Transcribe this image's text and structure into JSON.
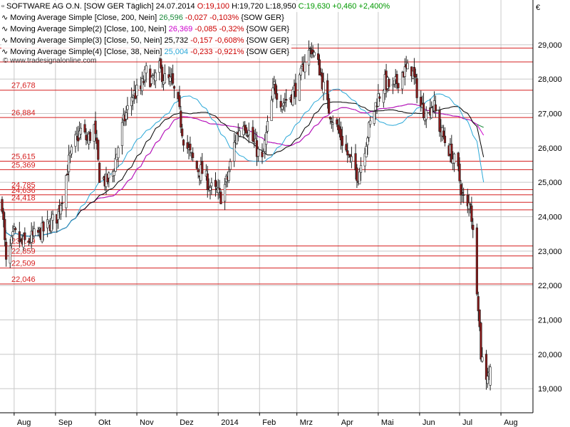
{
  "header": {
    "instrument": "SOFTWARE AG O.N. [SOW GER  Täglich] 24.07.2014",
    "open_label": "O:19,100",
    "high_label": "H:19,720",
    "low_label": "L:18,950",
    "close_label": "C:19,630",
    "change": "+0,460",
    "change_pct": "+2,400%"
  },
  "legend": [
    {
      "label": "Moving Average Simple [Close, 200, Nein]",
      "value": "26,596",
      "change": "-0,027",
      "pct": "-0,103%",
      "suffix": "{SOW GER}",
      "color": "#1a8a3a"
    },
    {
      "label": "Moving Average Simple(2) [Close, 100, Nein]",
      "value": "26,369",
      "change": "-0,085",
      "pct": "-0,32%",
      "suffix": "{SOW GER}",
      "color": "#cc00cc"
    },
    {
      "label": "Moving Average Simple(3) [Close, 50, Nein]",
      "value": "25,732",
      "change": "-0,157",
      "pct": "-0,608%",
      "suffix": "{SOW GER}",
      "color": "#000000"
    },
    {
      "label": "Moving Average Simple(4) [Close, 38, Nein]",
      "value": "25,004",
      "change": "-0,233",
      "pct": "-0,921%",
      "suffix": "{SOW GER}",
      "color": "#2aa8d8"
    }
  ],
  "watermark": "© www.tradesignalonline.com",
  "currency_symbol": "€",
  "colors": {
    "up": "#ffffff",
    "down": "#8b1a1a",
    "hline": "#d62020",
    "grid": "#c8c8c8",
    "ma200": "#1a8a3a",
    "ma100": "#cc00cc",
    "ma50": "#000000",
    "ma38": "#2aa8d8"
  },
  "chart_data": {
    "type": "candlestick",
    "title": "SOFTWARE AG O.N. [SOW GER  Täglich] 24.07.2014",
    "ylim": [
      18.3,
      30.3
    ],
    "yticks": [
      19,
      20,
      21,
      22,
      23,
      24,
      25,
      26,
      27,
      28,
      29
    ],
    "ytick_labels": [
      "19,000",
      "20,000",
      "21,000",
      "22,000",
      "23,000",
      "24,000",
      "25,000",
      "26,000",
      "27,000",
      "28,000",
      "29,000"
    ],
    "xtick_labels": [
      "Aug",
      "Sep",
      "Okt",
      "Nov",
      "Dez",
      "2014",
      "Feb",
      "Mrz",
      "Apr",
      "Mai",
      "Jun",
      "Jul",
      "Aug"
    ],
    "horizontal_levels": [
      {
        "label": "27,678",
        "value": 27.678
      },
      {
        "label": "26,884",
        "value": 26.884
      },
      {
        "label": "25,615",
        "value": 25.615
      },
      {
        "label": "25,369",
        "value": 25.369
      },
      {
        "label": "24,785",
        "value": 24.785
      },
      {
        "label": "24,636",
        "value": 24.636
      },
      {
        "label": "24,418",
        "value": 24.418
      },
      {
        "label": "23,149",
        "value": 23.149
      },
      {
        "label": "22,859",
        "value": 22.859
      },
      {
        "label": "22,509",
        "value": 22.509
      },
      {
        "label": "22,046",
        "value": 22.046
      },
      {
        "label": "",
        "value": 28.9
      },
      {
        "label": "",
        "value": 28.5
      },
      {
        "label": "",
        "value": 24.2
      }
    ],
    "month_starts": [
      {
        "label": "Aug",
        "start": "2013-08-01"
      },
      {
        "label": "Sep",
        "start": "2013-09-01"
      },
      {
        "label": "Okt",
        "start": "2013-10-01"
      },
      {
        "label": "Nov",
        "start": "2013-11-01"
      },
      {
        "label": "Dez",
        "start": "2013-12-01"
      },
      {
        "label": "2014",
        "start": "2014-01-01"
      },
      {
        "label": "Feb",
        "start": "2014-02-01"
      },
      {
        "label": "Mrz",
        "start": "2014-03-01"
      },
      {
        "label": "Apr",
        "start": "2014-04-01"
      },
      {
        "label": "Mai",
        "start": "2014-05-01"
      },
      {
        "label": "Jun",
        "start": "2014-06-01"
      },
      {
        "label": "Jul",
        "start": "2014-07-01"
      },
      {
        "label": "Aug",
        "start": "2014-08-01"
      }
    ],
    "close_path": [
      [
        "2013-07-23",
        24.4
      ],
      [
        "2013-07-26",
        22.6
      ],
      [
        "2013-08-01",
        23.5
      ],
      [
        "2013-08-07",
        23.2
      ],
      [
        "2013-08-15",
        23.4
      ],
      [
        "2013-08-23",
        23.6
      ],
      [
        "2013-09-02",
        24.0
      ],
      [
        "2013-09-06",
        24.6
      ],
      [
        "2013-09-11",
        25.6
      ],
      [
        "2013-09-16",
        26.2
      ],
      [
        "2013-09-20",
        26.5
      ],
      [
        "2013-09-25",
        26.2
      ],
      [
        "2013-09-30",
        26.6
      ],
      [
        "2013-10-04",
        25.2
      ],
      [
        "2013-10-09",
        25.0
      ],
      [
        "2013-10-14",
        25.3
      ],
      [
        "2013-10-21",
        26.6
      ],
      [
        "2013-10-28",
        27.5
      ],
      [
        "2013-11-04",
        27.7
      ],
      [
        "2013-11-08",
        28.2
      ],
      [
        "2013-11-13",
        27.9
      ],
      [
        "2013-11-18",
        28.3
      ],
      [
        "2013-11-22",
        28.0
      ],
      [
        "2013-11-27",
        27.9
      ],
      [
        "2013-12-02",
        27.2
      ],
      [
        "2013-12-06",
        26.3
      ],
      [
        "2013-12-11",
        25.8
      ],
      [
        "2013-12-16",
        25.4
      ],
      [
        "2013-12-20",
        25.3
      ],
      [
        "2013-12-27",
        24.8
      ],
      [
        "2014-01-03",
        24.6
      ],
      [
        "2014-01-08",
        25.1
      ],
      [
        "2014-01-14",
        26.3
      ],
      [
        "2014-01-20",
        26.8
      ],
      [
        "2014-01-27",
        26.2
      ],
      [
        "2014-02-03",
        25.6
      ],
      [
        "2014-02-07",
        26.6
      ],
      [
        "2014-02-12",
        27.8
      ],
      [
        "2014-02-18",
        27.3
      ],
      [
        "2014-02-24",
        27.5
      ],
      [
        "2014-03-03",
        27.9
      ],
      [
        "2014-03-07",
        28.6
      ],
      [
        "2014-03-12",
        28.9
      ],
      [
        "2014-03-18",
        28.3
      ],
      [
        "2014-03-24",
        27.2
      ],
      [
        "2014-03-31",
        26.6
      ],
      [
        "2014-04-04",
        26.2
      ],
      [
        "2014-04-10",
        25.6
      ],
      [
        "2014-04-16",
        25.2
      ],
      [
        "2014-04-23",
        26.4
      ],
      [
        "2014-04-30",
        27.4
      ],
      [
        "2014-05-06",
        27.9
      ],
      [
        "2014-05-12",
        27.7
      ],
      [
        "2014-05-19",
        28.2
      ],
      [
        "2014-05-26",
        28.3
      ],
      [
        "2014-06-02",
        27.2
      ],
      [
        "2014-06-06",
        27.0
      ],
      [
        "2014-06-11",
        27.3
      ],
      [
        "2014-06-16",
        26.6
      ],
      [
        "2014-06-20",
        26.2
      ],
      [
        "2014-06-25",
        25.8
      ],
      [
        "2014-06-30",
        25.3
      ],
      [
        "2014-07-03",
        24.6
      ],
      [
        "2014-07-07",
        24.2
      ],
      [
        "2014-07-09",
        24.5
      ],
      [
        "2014-07-15",
        21.5
      ],
      [
        "2014-07-17",
        20.0
      ],
      [
        "2014-07-21",
        19.4
      ],
      [
        "2014-07-24",
        19.63
      ]
    ],
    "ohlc_last": {
      "date": "2014-07-24",
      "open": 19.1,
      "high": 19.72,
      "low": 18.95,
      "close": 19.63
    },
    "moving_averages": [
      {
        "name": "Moving Average Simple [Close, 200, Nein]",
        "period": 200,
        "last": 26.596
      },
      {
        "name": "Moving Average Simple(2) [Close, 100, Nein]",
        "period": 100,
        "last": 26.369
      },
      {
        "name": "Moving Average Simple(3) [Close, 50, Nein]",
        "period": 50,
        "last": 25.732
      },
      {
        "name": "Moving Average Simple(4) [Close, 38, Nein]",
        "period": 38,
        "last": 25.004
      }
    ]
  }
}
